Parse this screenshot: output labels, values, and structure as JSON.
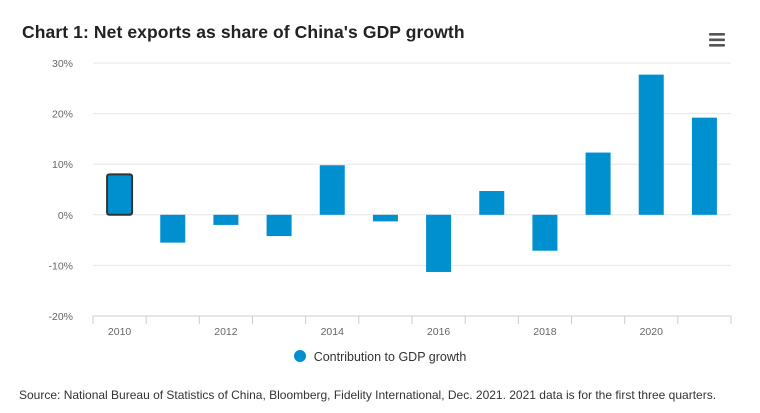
{
  "title": "Chart 1: Net exports as share of China's GDP growth",
  "menu_icon": "hamburger-menu-icon",
  "source": "Source: National Bureau of Statistics of China, Bloomberg, Fidelity International, Dec. 2021. 2021 data is for the first three quarters.",
  "colors": {
    "bar": "#0090d0",
    "highlight_stroke": "#333333",
    "grid": "#e6e6e6",
    "axis": "#cccccc",
    "text": "#666666"
  },
  "chart_data": {
    "type": "bar",
    "categories": [
      "2010",
      "2011",
      "2012",
      "2013",
      "2014",
      "2015",
      "2016",
      "2017",
      "2018",
      "2019",
      "2020",
      "2021"
    ],
    "x_tick_labels": [
      "2010",
      "2012",
      "2014",
      "2016",
      "2018",
      "2020"
    ],
    "series": [
      {
        "name": "Contribution to GDP growth",
        "values": [
          8,
          -5.5,
          -2,
          -4.2,
          9.8,
          -1.3,
          -11.3,
          4.7,
          -7.1,
          12.3,
          27.7,
          19.2
        ]
      }
    ],
    "ylim": [
      -20,
      30
    ],
    "y_ticks": [
      "-20%",
      "-10%",
      "0%",
      "10%",
      "20%",
      "30%"
    ],
    "y_tick_values": [
      -20,
      -10,
      0,
      10,
      20,
      30
    ],
    "grid": true,
    "legend_position": "bottom-center",
    "highlighted_category": "2010"
  }
}
